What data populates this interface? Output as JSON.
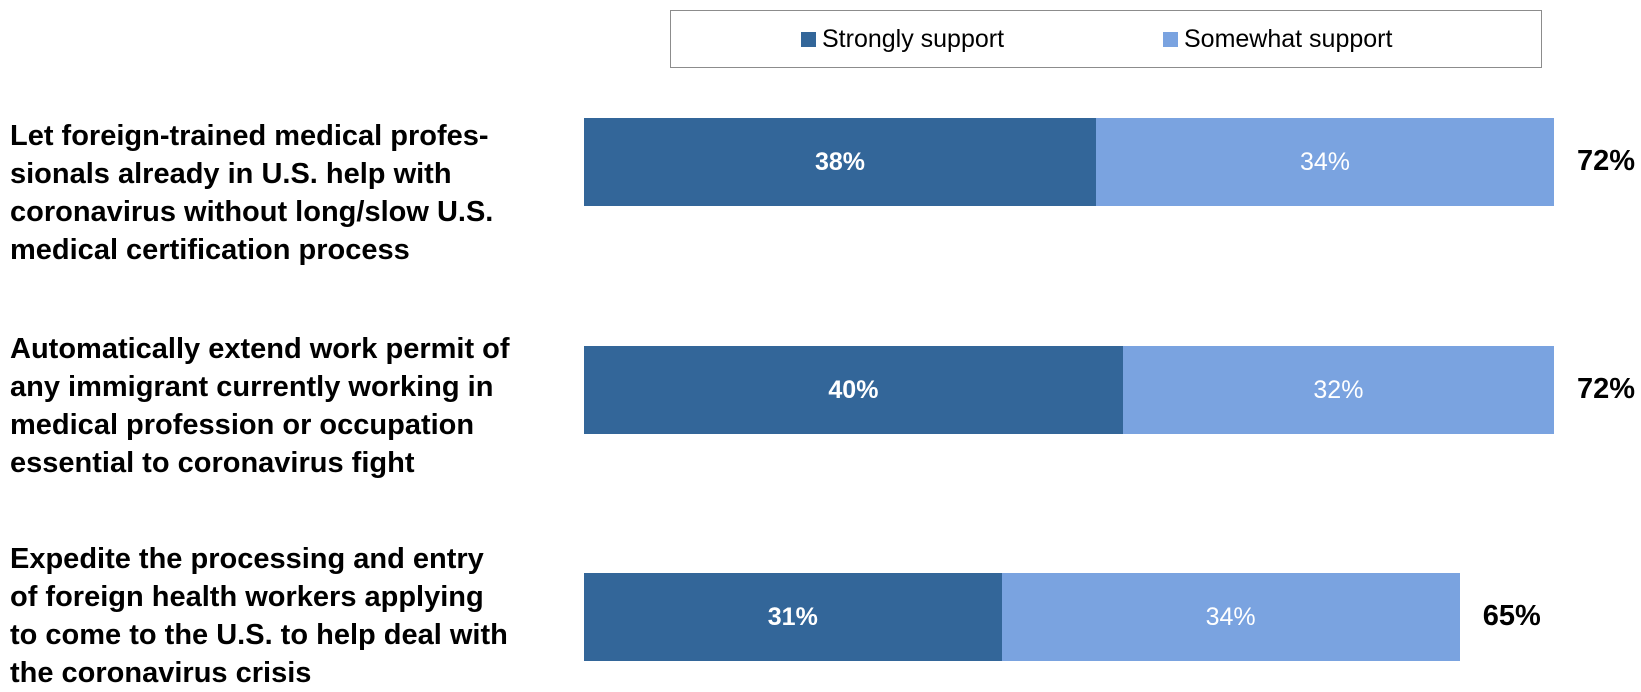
{
  "chart_data": {
    "type": "bar",
    "orientation": "horizontal",
    "stacked": true,
    "categories": [
      "Let foreign-trained medical professionals already in U.S. help with coronavirus without long/slow U.S. medical certification process",
      "Automatically extend work permit of any immigrant currently working in medical profession or occupation essential to coronavirus fight",
      "Expedite the processing and entry of foreign health workers applying to come to the U.S. to help deal with the coronavirus crisis"
    ],
    "category_lines": [
      [
        "Let foreign-trained medical profes-",
        "sionals already in U.S. help with",
        "coronavirus without long/slow U.S.",
        "medical certification process"
      ],
      [
        "Automatically extend work permit of",
        "any immigrant currently working in",
        "medical profession or occupation",
        "essential to coronavirus fight"
      ],
      [
        "Expedite the processing and entry",
        "of foreign health workers applying",
        "to come to the U.S. to help deal with",
        "the coronavirus crisis"
      ]
    ],
    "series": [
      {
        "name": "Strongly support",
        "values": [
          38,
          40,
          31
        ],
        "labels": [
          "38%",
          "40%",
          "31%"
        ],
        "color": "#336699"
      },
      {
        "name": "Somewhat support",
        "values": [
          34,
          32,
          34
        ],
        "labels": [
          "34%",
          "32%",
          "34%"
        ],
        "color": "#7aa3e0"
      }
    ],
    "totals": [
      72,
      72,
      65
    ],
    "total_labels": [
      "72%",
      "72%",
      "65%"
    ],
    "xlim": [
      0,
      72
    ],
    "legend": "top",
    "grid": false
  }
}
